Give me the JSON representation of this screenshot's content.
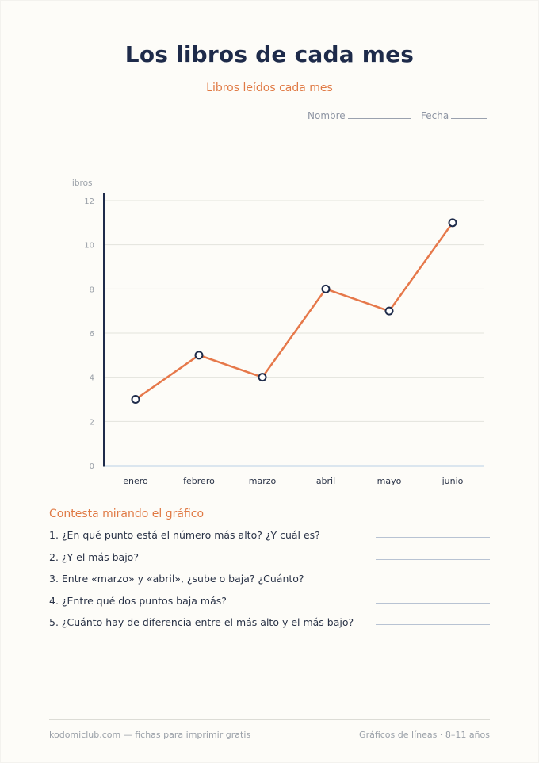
{
  "title": "Los libros de cada mes",
  "subtitle": "Libros leídos cada mes",
  "fields": {
    "name_label": "Nombre",
    "date_label": "Fecha"
  },
  "chart_data": {
    "type": "line",
    "ylabel": "libros",
    "xlabel": "",
    "categories": [
      "enero",
      "febrero",
      "marzo",
      "abril",
      "mayo",
      "junio"
    ],
    "series": [
      {
        "values": [
          3,
          5,
          4,
          8,
          7,
          11
        ]
      }
    ],
    "ylim": [
      0,
      12
    ],
    "yticks": [
      0,
      2,
      4,
      6,
      8,
      10,
      12
    ],
    "grid": true,
    "colors": {
      "line": "#e6784a",
      "marker_edge": "#1e2b4a",
      "marker_fill": "#ffffff",
      "grid": "#e3e3dd",
      "axis": "#1e2b4a",
      "baseline": "#b9cfe6"
    }
  },
  "questions": {
    "heading": "Contesta mirando el gráfico",
    "items": [
      "1. ¿En qué punto está el número más alto? ¿Y cuál es?",
      "2. ¿Y el más bajo?",
      "3. Entre «marzo» y «abril», ¿sube o baja? ¿Cuánto?",
      "4. ¿Entre qué dos puntos baja más?",
      "5. ¿Cuánto hay de diferencia entre el más alto y el más bajo?"
    ]
  },
  "footer": {
    "left": "kodomiclub.com — fichas para imprimir gratis",
    "right": "Gráficos de líneas · 8–11 años"
  }
}
